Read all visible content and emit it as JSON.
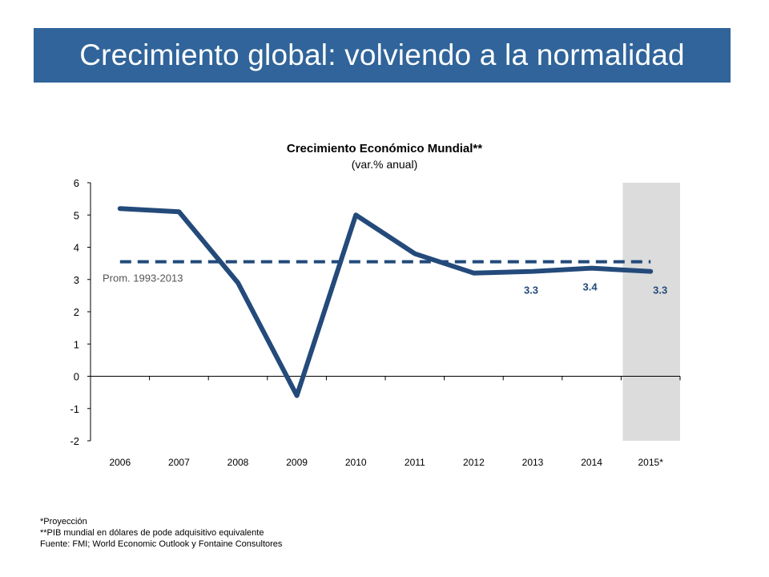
{
  "header": {
    "title": "Crecimiento global: volviendo a la normalidad",
    "color": "#30649a"
  },
  "chart_data": {
    "type": "line",
    "title": "Crecimiento Económico Mundial**",
    "subtitle": "(var.% anual)",
    "categories": [
      "2006",
      "2007",
      "2008",
      "2009",
      "2010",
      "2011",
      "2012",
      "2013",
      "2014",
      "2015*"
    ],
    "series": [
      {
        "values": [
          5.2,
          5.1,
          2.9,
          -0.6,
          5.0,
          3.8,
          3.2,
          3.25,
          3.35,
          3.25
        ],
        "color": "#234a7a"
      }
    ],
    "reference_line": {
      "label": "Prom. 1993-2013",
      "value": 3.55,
      "style": "dashed",
      "color": "#234a7a"
    },
    "data_labels": [
      {
        "category": "2013",
        "text": "3.3"
      },
      {
        "category": "2014",
        "text": "3.4"
      },
      {
        "category": "2015*",
        "text": "3.3"
      }
    ],
    "highlight_category": "2015*",
    "highlight_color": "#dcdcdc",
    "ylim": [
      -2,
      6
    ],
    "yticks": [
      "6",
      "5",
      "4",
      "3",
      "2",
      "1",
      "0",
      "-1",
      "-2"
    ],
    "grid": false,
    "xlabel": "",
    "ylabel": ""
  },
  "footnotes": {
    "projection": "*Proyección",
    "pib": "**PIB mundial en dólares de pode adquisitivo equivalente",
    "source": "Fuente: FMI; World Economic Outlook y Fontaine Consultores"
  }
}
